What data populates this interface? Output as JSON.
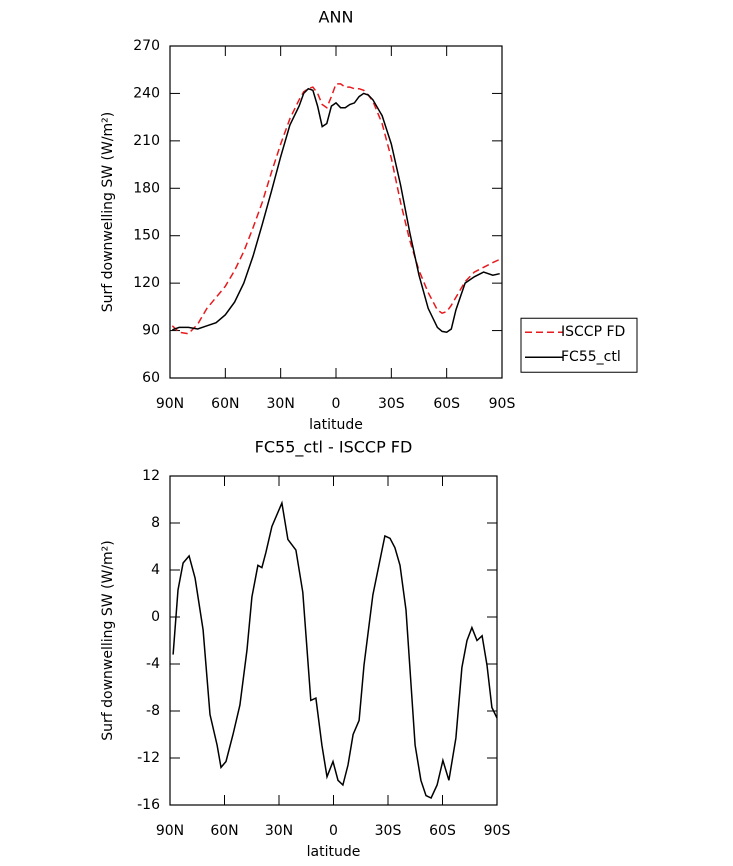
{
  "chart_data": [
    {
      "type": "line",
      "title": "ANN",
      "xlabel": "latitude",
      "ylabel": "Surf downwelling SW (W/m²)",
      "xlim": [
        90,
        -90
      ],
      "xticks": [
        {
          "value": 90,
          "label": "90N"
        },
        {
          "value": 60,
          "label": "60N"
        },
        {
          "value": 30,
          "label": "30N"
        },
        0,
        {
          "value": -30,
          "label": "30S"
        },
        {
          "value": -60,
          "label": "60S"
        },
        {
          "value": -90,
          "label": "90S"
        }
      ],
      "ylim": [
        60,
        270
      ],
      "yticks": [
        60,
        90,
        120,
        150,
        180,
        210,
        240,
        270
      ],
      "legend": "right",
      "x": [
        88.75,
        85,
        80,
        75,
        70,
        65,
        60,
        55,
        50,
        45,
        40,
        35,
        30,
        25,
        20,
        17.5,
        15,
        12.5,
        10,
        7.5,
        5,
        2.5,
        0,
        -2.5,
        -5,
        -7.5,
        -10,
        -12.5,
        -15,
        -17.5,
        -20,
        -25,
        -30,
        -35,
        -40,
        -45,
        -50,
        -55,
        -57.5,
        -60,
        -62.5,
        -65,
        -70,
        -75,
        -80,
        -85,
        -88.75
      ],
      "series": [
        {
          "name": "ISCCP FD",
          "color": "#e8191c",
          "dash": true,
          "values": [
            93,
            89,
            88,
            94,
            104,
            111,
            118,
            128,
            140,
            155,
            171,
            190,
            208,
            224,
            236,
            241,
            243,
            244,
            240,
            233,
            231,
            238,
            246,
            246,
            244,
            244,
            243,
            243,
            242,
            239,
            235,
            221,
            199,
            171,
            147,
            128,
            114,
            103,
            101,
            102,
            106,
            111,
            121,
            127,
            130,
            133,
            135
          ]
        },
        {
          "name": "FC55_ctl",
          "color": "#000000",
          "dash": false,
          "values": [
            90.5,
            92,
            92,
            91,
            93,
            95,
            100,
            108,
            120,
            137,
            157,
            178,
            200,
            220,
            232,
            240,
            243,
            242,
            232,
            219,
            221,
            232,
            234,
            231,
            231,
            233,
            234,
            238,
            240,
            239,
            236,
            226,
            208,
            182,
            152,
            125,
            104,
            92,
            89.5,
            89,
            91,
            103,
            120,
            124,
            127,
            125,
            126
          ]
        }
      ]
    },
    {
      "type": "line",
      "title": "FC55_ctl - ISCCP FD",
      "xlabel": "latitude",
      "ylabel": "Surf downwelling SW (W/m²)",
      "xlim": [
        90,
        -90
      ],
      "xticks": [
        {
          "value": 90,
          "label": "90N"
        },
        {
          "value": 60,
          "label": "60N"
        },
        {
          "value": 30,
          "label": "30N"
        },
        0,
        {
          "value": -30,
          "label": "30S"
        },
        {
          "value": -60,
          "label": "60S"
        },
        {
          "value": -90,
          "label": "90S"
        }
      ],
      "ylim": [
        -16,
        12
      ],
      "yticks": [
        -16,
        -12,
        -8,
        -4,
        0,
        4,
        8,
        12
      ],
      "color": "#000000",
      "x": [
        88.3,
        85.6,
        82.8,
        79.5,
        76.2,
        71.8,
        68,
        64.1,
        61.9,
        59.2,
        55.3,
        51.5,
        47.6,
        44.9,
        41.6,
        39.4,
        37.2,
        33.9,
        28.4,
        25.1,
        20.7,
        16.9,
        12.5,
        9.7,
        6.4,
        3.6,
        0.3,
        -2.5,
        -5.2,
        -8,
        -10.8,
        -14.1,
        -16.8,
        -21.7,
        -28.3,
        -31.1,
        -33.8,
        -36.6,
        -39.9,
        -44.9,
        -48.1,
        -50.9,
        -53.7,
        -57,
        -60.2,
        -63.5,
        -67.4,
        -70.7,
        -73.5,
        -76.2,
        -79,
        -81.8,
        -84.5,
        -87.2,
        -90
      ],
      "values": [
        -3.2,
        2.3,
        4.6,
        5.2,
        3.3,
        -1.1,
        -8.3,
        -10.9,
        -12.8,
        -12.3,
        -10,
        -7.5,
        -2.8,
        1.7,
        4.4,
        4.2,
        5.5,
        7.7,
        9.7,
        6.6,
        5.7,
        2.1,
        -7.1,
        -6.9,
        -10.9,
        -13.6,
        -12.3,
        -13.9,
        -14.3,
        -12.6,
        -10,
        -8.8,
        -4.1,
        1.9,
        6.9,
        6.7,
        5.9,
        4.4,
        0.6,
        -10.9,
        -13.9,
        -15.2,
        -15.4,
        -14.3,
        -12.2,
        -13.9,
        -10.3,
        -4.3,
        -2,
        -0.9,
        -2,
        -1.6,
        -4.1,
        -7.7,
        -8.6
      ]
    }
  ]
}
